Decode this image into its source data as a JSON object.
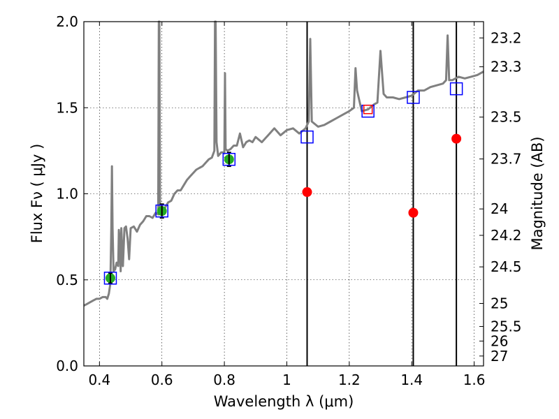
{
  "chart_data": {
    "type": "scatter",
    "xlabel": "Wavelength  λ (μm)",
    "ylabel": "Flux  Fν  ( μJy )",
    "y2label": "Magnitude (AB)",
    "xlim": [
      0.35,
      1.63
    ],
    "ylim": [
      0.0,
      2.0
    ],
    "grid": true,
    "x_ticks": [
      0.4,
      0.6,
      0.8,
      1.0,
      1.2,
      1.4,
      1.6
    ],
    "x_tick_labels": [
      "0.4",
      "0.6",
      "0.8",
      "1",
      "1.2",
      "1.4",
      "1.6"
    ],
    "y_ticks": [
      0.0,
      0.5,
      1.0,
      1.5,
      2.0
    ],
    "y_tick_labels": [
      "0.0",
      "0.5",
      "1.0",
      "1.5",
      "2.0"
    ],
    "y2_ticks": [
      23.2,
      23.3,
      23.5,
      23.7,
      24,
      24.2,
      24.5,
      25,
      25.5,
      26,
      27
    ],
    "y2_tick_labels": [
      "23.2",
      "23.3",
      "23.5",
      "23.7",
      "24",
      "24.2",
      "24.5",
      "25",
      "25.5",
      "26",
      "27"
    ],
    "vertical_lines_x": [
      1.065,
      1.405,
      1.543
    ],
    "series": [
      {
        "kind": "line",
        "color": "#808080",
        "x": [
          0.35,
          0.36,
          0.37,
          0.38,
          0.39,
          0.4,
          0.41,
          0.42,
          0.425,
          0.43,
          0.435,
          0.438,
          0.44,
          0.442,
          0.445,
          0.45,
          0.455,
          0.46,
          0.462,
          0.465,
          0.468,
          0.47,
          0.475,
          0.48,
          0.485,
          0.49,
          0.495,
          0.5,
          0.51,
          0.52,
          0.53,
          0.54,
          0.55,
          0.56,
          0.57,
          0.58,
          0.588,
          0.59,
          0.592,
          0.594,
          0.596,
          0.6,
          0.61,
          0.62,
          0.63,
          0.64,
          0.65,
          0.66,
          0.67,
          0.68,
          0.69,
          0.7,
          0.71,
          0.72,
          0.73,
          0.74,
          0.75,
          0.76,
          0.768,
          0.77,
          0.772,
          0.775,
          0.78,
          0.79,
          0.8,
          0.802,
          0.804,
          0.81,
          0.82,
          0.83,
          0.84,
          0.85,
          0.86,
          0.87,
          0.88,
          0.89,
          0.9,
          0.92,
          0.94,
          0.96,
          0.98,
          1.0,
          1.02,
          1.04,
          1.06,
          1.07,
          1.075,
          1.08,
          1.1,
          1.12,
          1.14,
          1.16,
          1.18,
          1.2,
          1.215,
          1.22,
          1.225,
          1.24,
          1.26,
          1.28,
          1.29,
          1.3,
          1.31,
          1.32,
          1.34,
          1.36,
          1.38,
          1.4,
          1.42,
          1.44,
          1.46,
          1.48,
          1.5,
          1.51,
          1.515,
          1.52,
          1.53,
          1.55,
          1.57,
          1.59,
          1.61,
          1.63
        ],
        "y": [
          0.35,
          0.36,
          0.37,
          0.38,
          0.39,
          0.39,
          0.4,
          0.4,
          0.39,
          0.42,
          0.48,
          0.8,
          1.16,
          0.8,
          0.55,
          0.56,
          0.6,
          0.58,
          0.79,
          0.72,
          0.55,
          0.8,
          0.58,
          0.8,
          0.81,
          0.74,
          0.62,
          0.8,
          0.81,
          0.78,
          0.82,
          0.84,
          0.87,
          0.87,
          0.86,
          0.89,
          0.88,
          2.0,
          2.0,
          0.9,
          0.92,
          0.91,
          0.92,
          0.95,
          0.96,
          1.0,
          1.02,
          1.02,
          1.05,
          1.08,
          1.1,
          1.12,
          1.14,
          1.15,
          1.16,
          1.18,
          1.2,
          1.21,
          1.25,
          2.0,
          2.0,
          1.3,
          1.22,
          1.24,
          1.24,
          1.7,
          1.26,
          1.25,
          1.26,
          1.28,
          1.28,
          1.35,
          1.27,
          1.3,
          1.31,
          1.3,
          1.33,
          1.3,
          1.34,
          1.38,
          1.34,
          1.37,
          1.38,
          1.35,
          1.38,
          1.42,
          1.9,
          1.42,
          1.39,
          1.4,
          1.42,
          1.44,
          1.46,
          1.48,
          1.5,
          1.73,
          1.6,
          1.48,
          1.49,
          1.52,
          1.53,
          1.83,
          1.58,
          1.56,
          1.56,
          1.55,
          1.56,
          1.57,
          1.6,
          1.6,
          1.62,
          1.63,
          1.64,
          1.66,
          1.92,
          1.66,
          1.66,
          1.68,
          1.67,
          1.68,
          1.69,
          1.71
        ]
      },
      {
        "kind": "marker",
        "marker": "circle",
        "color": "#22aa22",
        "x": [
          0.435,
          0.6,
          0.815
        ],
        "y": [
          0.51,
          0.9,
          1.2
        ],
        "yerr": [
          0.03,
          0.04,
          0.04
        ]
      },
      {
        "kind": "marker",
        "marker": "circle",
        "color": "#ff0000",
        "x": [
          1.065,
          1.405,
          1.543
        ],
        "y": [
          1.01,
          0.89,
          1.32
        ]
      },
      {
        "kind": "marker",
        "marker": "open-square",
        "color": "#0000ff",
        "x": [
          0.435,
          0.6,
          0.815,
          1.065,
          1.26,
          1.405,
          1.543
        ],
        "y": [
          0.51,
          0.9,
          1.2,
          1.33,
          1.48,
          1.56,
          1.61
        ]
      },
      {
        "kind": "marker",
        "marker": "open-square",
        "color": "#ff0000",
        "x": [
          1.26
        ],
        "y": [
          1.49
        ]
      }
    ]
  }
}
